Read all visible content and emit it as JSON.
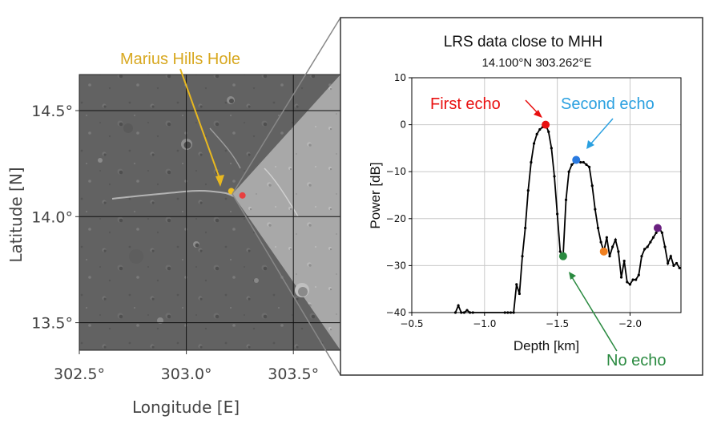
{
  "map": {
    "chart_data": {
      "type": "map",
      "xlabel": "Longitude [E]",
      "ylabel": "Latitude [N]",
      "xlim": [
        302.5,
        303.72
      ],
      "ylim": [
        13.37,
        14.67
      ],
      "xticks": [
        302.5,
        303.0,
        303.5
      ],
      "xtick_labels": [
        "302.5°",
        "303.0°",
        "303.5°"
      ],
      "yticks": [
        14.5,
        14.0,
        13.5
      ],
      "ytick_labels": [
        "14.5°",
        "14.0°",
        "13.5°"
      ],
      "grid": true,
      "annotation": {
        "text": "Marius Hills Hole",
        "color": "#d8a820"
      },
      "points": [
        {
          "lon": 303.21,
          "lat": 14.12,
          "color": "#f0c020"
        },
        {
          "lon": 303.262,
          "lat": 14.1,
          "color": "#e84040"
        }
      ]
    }
  },
  "inset": {
    "chart_data": {
      "type": "line",
      "title": "LRS data close to MHH",
      "subtitle": "14.100°N  303.262°E",
      "xlabel": "Depth [km]",
      "ylabel": "Power [dB]",
      "xlim": [
        -0.5,
        -2.35
      ],
      "ylim": [
        -40,
        10
      ],
      "xticks": [
        -0.5,
        -1.0,
        -1.5,
        -2.0
      ],
      "xtick_labels": [
        "−0.5",
        "−1.0",
        "−1.5",
        "−2.0"
      ],
      "yticks": [
        10,
        0,
        -10,
        -20,
        -30,
        -40
      ],
      "ytick_labels": [
        "10",
        "0",
        "−10",
        "−20",
        "−30",
        "−40"
      ],
      "grid": true,
      "series": [
        {
          "color": "#000000",
          "x": [
            -0.8,
            -0.82,
            -0.84,
            -0.86,
            -0.88,
            -0.9,
            -0.92,
            -1.14,
            -1.16,
            -1.18,
            -1.2,
            -1.22,
            -1.24,
            -1.26,
            -1.28,
            -1.3,
            -1.32,
            -1.34,
            -1.36,
            -1.38,
            -1.4,
            -1.42,
            -1.44,
            -1.46,
            -1.48,
            -1.5,
            -1.52,
            -1.54,
            -1.56,
            -1.58,
            -1.6,
            -1.62,
            -1.64,
            -1.66,
            -1.68,
            -1.7,
            -1.72,
            -1.74,
            -1.76,
            -1.78,
            -1.8,
            -1.82,
            -1.84,
            -1.86,
            -1.88,
            -1.9,
            -1.92,
            -1.94,
            -1.96,
            -1.98,
            -2.0,
            -2.02,
            -2.04,
            -2.06,
            -2.08,
            -2.1,
            -2.12,
            -2.14,
            -2.16,
            -2.18,
            -2.2,
            -2.22,
            -2.24,
            -2.26,
            -2.28,
            -2.3,
            -2.32,
            -2.34
          ],
          "y": [
            -40,
            -38.5,
            -40,
            -40,
            -39.5,
            -40,
            -40,
            -40,
            -40,
            -40,
            -40,
            -34,
            -36,
            -28,
            -22,
            -14,
            -8,
            -4,
            -2,
            -1,
            -0.5,
            0,
            -1.5,
            -5,
            -11,
            -19,
            -27,
            -28,
            -16,
            -10,
            -8.5,
            -8,
            -7.5,
            -8,
            -8,
            -8.5,
            -9,
            -13,
            -18,
            -22,
            -25,
            -27,
            -24,
            -28,
            -26,
            -24.5,
            -27,
            -32.5,
            -29,
            -33.5,
            -34,
            -33,
            -33,
            -32,
            -28,
            -26.5,
            -26,
            -25,
            -24,
            -23,
            -22,
            -23,
            -26,
            -29.5,
            -28,
            -30,
            -29.5,
            -30.5
          ]
        }
      ],
      "markers": [
        {
          "x": -1.42,
          "y": 0,
          "color": "#e81010"
        },
        {
          "x": -1.63,
          "y": -7.5,
          "color": "#2a7ae0"
        },
        {
          "x": -1.54,
          "y": -28,
          "color": "#2a8a40"
        },
        {
          "x": -1.82,
          "y": -27,
          "color": "#f08020"
        },
        {
          "x": -2.19,
          "y": -22,
          "color": "#6a2080"
        }
      ],
      "annotations": [
        {
          "text": "First echo",
          "color": "#e81010"
        },
        {
          "text": "Second echo",
          "color": "#2aa0e0"
        },
        {
          "text": "No echo",
          "color": "#2a8a40"
        }
      ]
    }
  }
}
